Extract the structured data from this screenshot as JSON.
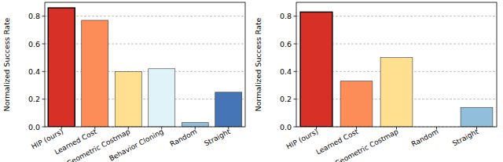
{
  "chart_data": [
    {
      "type": "bar",
      "y_label": "Normalized Success Rate",
      "categories": [
        "HIP (ours)",
        "Learned Cost",
        "Geometric Costmap",
        "Behavior Cloning",
        "Random",
        "Straight"
      ],
      "values": [
        0.86,
        0.77,
        0.4,
        0.42,
        0.03,
        0.25
      ],
      "colors": [
        "#d73027",
        "#fc8d59",
        "#fee090",
        "#e0f3f8",
        "#91bfdb",
        "#4575b4"
      ],
      "ylim": [
        0,
        0.9
      ],
      "yticks": [
        {
          "value": 0,
          "label": "0.0"
        },
        0.2,
        0.4,
        0.6,
        0.8
      ],
      "grid": true
    },
    {
      "type": "bar",
      "y_label": "Normalized Success Rate",
      "categories": [
        "HIP (ours)",
        "Learned Cost",
        "Geometric Costmap",
        "Random",
        "Straight"
      ],
      "values": [
        0.83,
        0.33,
        0.5,
        0.0,
        0.14
      ],
      "colors": [
        "#d73027",
        "#fc8d59",
        "#fee090",
        "#91bfdb",
        "#91bfdb"
      ],
      "ylim": [
        0,
        0.9
      ],
      "yticks": [
        {
          "value": 0,
          "label": "0.0"
        },
        0.2,
        0.4,
        0.6,
        0.8
      ],
      "grid": true
    }
  ]
}
